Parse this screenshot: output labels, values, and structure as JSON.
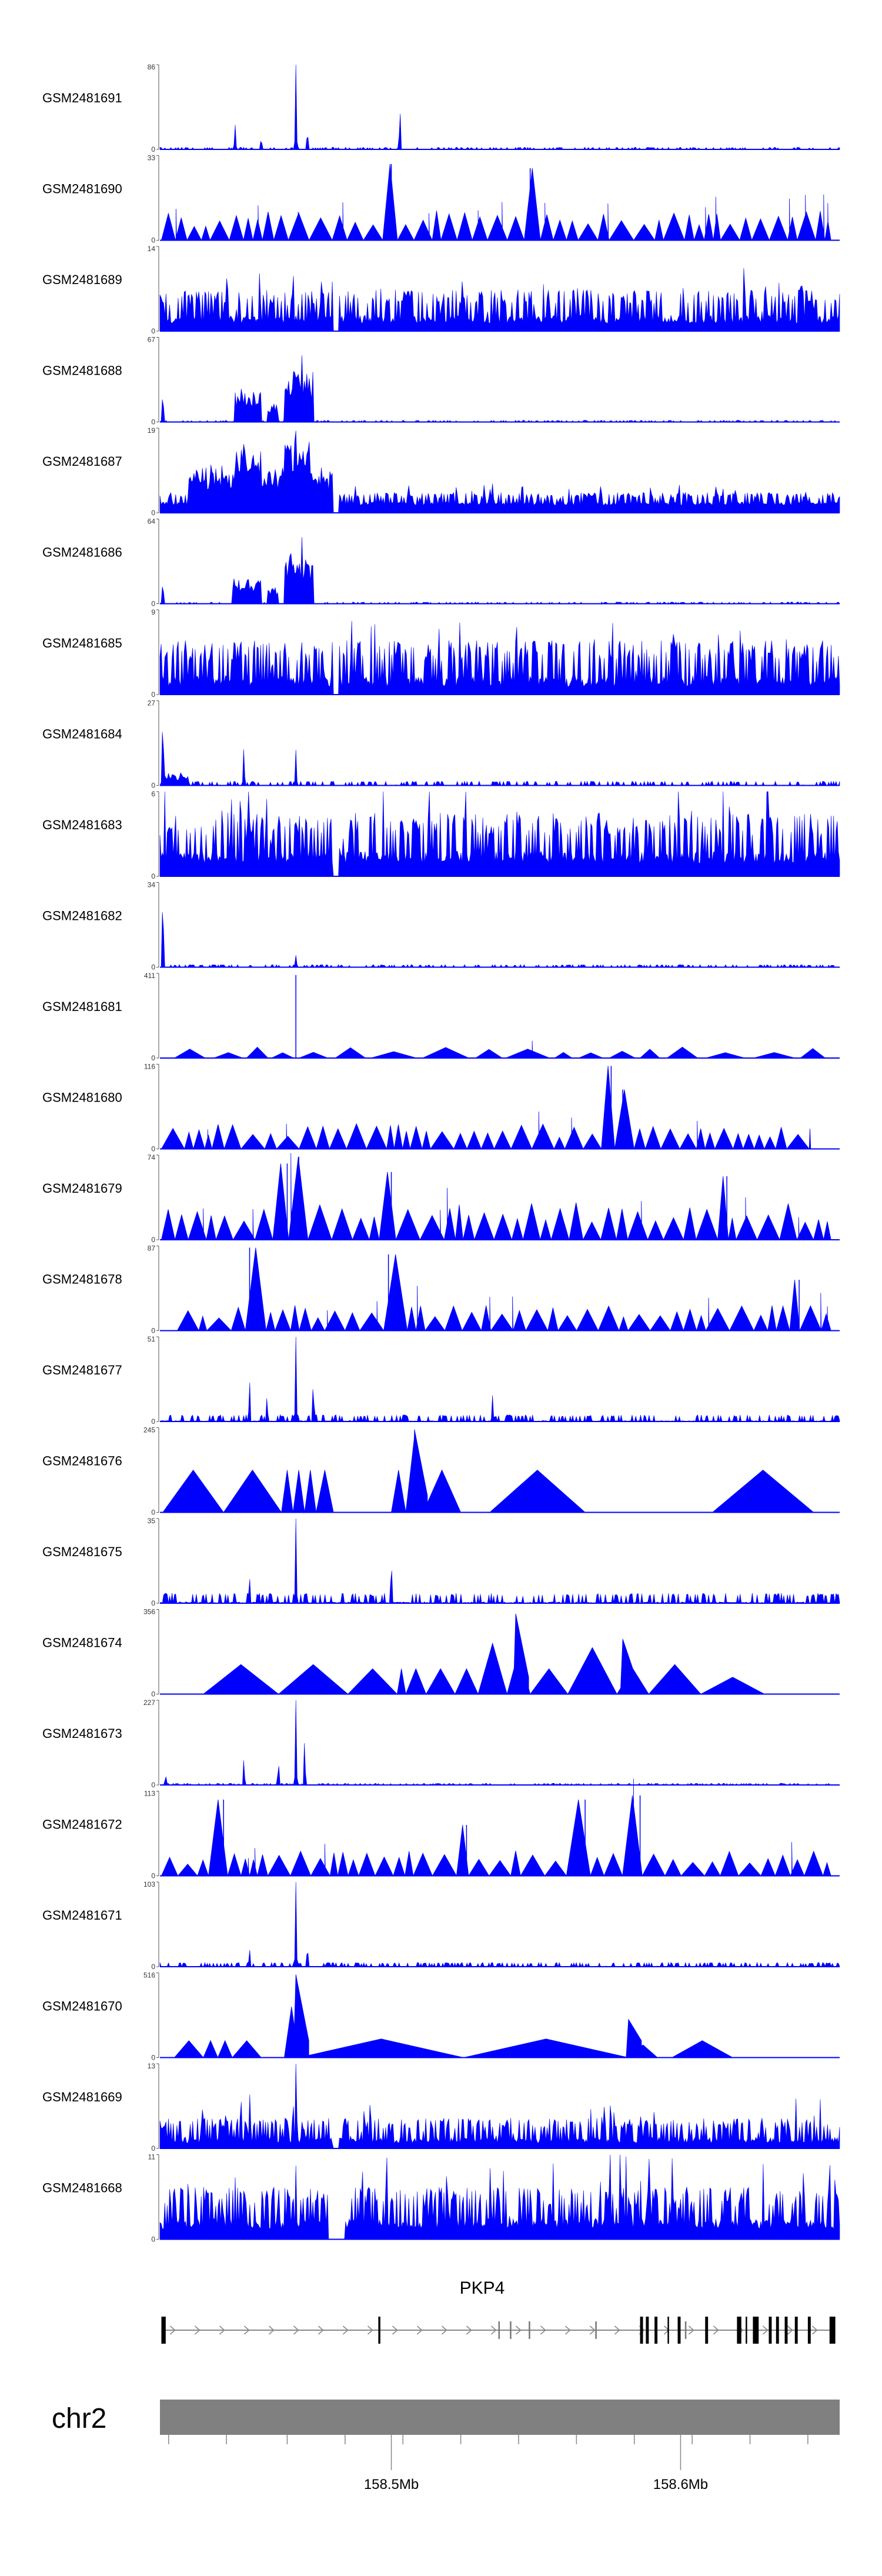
{
  "chart_data": {
    "type": "area",
    "x_unit": "Mb",
    "x_range": [
      158.42,
      158.655
    ],
    "series_color": "#0000ff",
    "tracks": [
      {
        "name": "GSM2481691",
        "ymax": "86",
        "ymin": "0",
        "ymax_value": 86,
        "style": "spiky",
        "baseline": 1,
        "noise": 0.025,
        "seed": 11,
        "peaks": [
          [
            158.446,
            0.28
          ],
          [
            158.455,
            0.12
          ],
          [
            158.467,
            1.0
          ],
          [
            158.471,
            0.22
          ],
          [
            158.503,
            0.5
          ]
        ],
        "bumps": []
      },
      {
        "name": "GSM2481690",
        "ymax": "33",
        "ymin": "0",
        "ymax_value": 33,
        "style": "triangles",
        "baseline": 0,
        "noise": 0.35,
        "seed": 12,
        "peaks": [
          [
            158.5,
            0.9
          ],
          [
            158.548,
            0.85
          ]
        ],
        "bumps": [],
        "gaps": [
          [
            158.488,
            158.491
          ]
        ]
      },
      {
        "name": "GSM2481689",
        "ymax": "14",
        "ymin": "0",
        "ymax_value": 14,
        "style": "dense",
        "baseline": 3,
        "noise": 0.4,
        "seed": 13,
        "peaks": [
          [
            158.466,
            0.98
          ],
          [
            158.458,
            0.55
          ]
        ],
        "bumps": [],
        "gaps": [
          [
            158.48,
            158.482
          ]
        ]
      },
      {
        "name": "GSM2481688",
        "ymax": "67",
        "ymin": "0",
        "ymax_value": 67,
        "style": "spiky",
        "baseline": 1,
        "noise": 0.02,
        "seed": 14,
        "peaks": [
          [
            158.421,
            0.38
          ],
          [
            158.448,
            0.5
          ],
          [
            158.469,
            0.98
          ]
        ],
        "bumps": [
          [
            158.446,
            158.455,
            0.38
          ],
          [
            158.457,
            158.461,
            0.22
          ],
          [
            158.463,
            158.473,
            0.6
          ]
        ]
      },
      {
        "name": "GSM2481687",
        "ymax": "19",
        "ymin": "0",
        "ymax_value": 19,
        "style": "dense",
        "baseline": 3,
        "noise": 0.15,
        "seed": 15,
        "peaks": [
          [
            158.467,
            0.95
          ],
          [
            158.449,
            0.8
          ],
          [
            158.46,
            0.7
          ]
        ],
        "bumps": [
          [
            158.43,
            158.48,
            0.35
          ],
          [
            158.446,
            158.455,
            0.3
          ],
          [
            158.463,
            158.472,
            0.35
          ]
        ],
        "gaps": [
          [
            158.48,
            158.482
          ]
        ]
      },
      {
        "name": "GSM2481686",
        "ymax": "64",
        "ymin": "0",
        "ymax_value": 64,
        "style": "spiky",
        "baseline": 1,
        "noise": 0.02,
        "seed": 16,
        "peaks": [
          [
            158.421,
            0.28
          ],
          [
            158.469,
            0.98
          ]
        ],
        "bumps": [
          [
            158.445,
            158.455,
            0.3
          ],
          [
            158.457,
            158.461,
            0.2
          ],
          [
            158.463,
            158.473,
            0.6
          ]
        ]
      },
      {
        "name": "GSM2481685",
        "ymax": "9",
        "ymin": "0",
        "ymax_value": 9,
        "style": "dense",
        "baseline": 3,
        "noise": 0.55,
        "seed": 17,
        "peaks": [
          [
            158.549,
            0.95
          ]
        ],
        "bumps": [],
        "gaps": [
          [
            158.48,
            158.482
          ]
        ]
      },
      {
        "name": "GSM2481684",
        "ymax": "27",
        "ymin": "0",
        "ymax_value": 27,
        "style": "spiky",
        "baseline": 1,
        "noise": 0.05,
        "seed": 18,
        "peaks": [
          [
            158.421,
            0.95
          ],
          [
            158.449,
            0.45
          ],
          [
            158.467,
            0.4
          ]
        ],
        "bumps": [
          [
            158.421,
            158.43,
            0.12
          ]
        ]
      },
      {
        "name": "GSM2481683",
        "ymax": "6",
        "ymin": "0",
        "ymax_value": 6,
        "style": "dense",
        "baseline": 5,
        "noise": 0.6,
        "seed": 19,
        "peaks": [],
        "bumps": [],
        "gaps": [
          [
            158.48,
            158.482
          ]
        ]
      },
      {
        "name": "GSM2481682",
        "ymax": "34",
        "ymin": "0",
        "ymax_value": 34,
        "style": "spiky",
        "baseline": 1,
        "noise": 0.03,
        "seed": 20,
        "peaks": [
          [
            158.421,
            0.98
          ],
          [
            158.467,
            0.12
          ]
        ],
        "bumps": []
      },
      {
        "name": "GSM2481681",
        "ymax": "411",
        "ymin": "0",
        "ymax_value": 411,
        "style": "triangles",
        "baseline": 0,
        "noise": 0.13,
        "seed": 21,
        "peaks": [
          [
            158.467,
            0.98
          ]
        ],
        "bumps": [],
        "tri_start": 158.425,
        "tri_end": 158.65,
        "sparse": 1
      },
      {
        "name": "GSM2481680",
        "ymax": "116",
        "ymin": "0",
        "ymax_value": 116,
        "style": "triangles",
        "baseline": 0,
        "noise": 0.3,
        "seed": 22,
        "peaks": [
          [
            158.576,
            0.98
          ],
          [
            158.58,
            0.7
          ]
        ],
        "bumps": [],
        "tri_end": 158.645
      },
      {
        "name": "GSM2481679",
        "ymax": "74",
        "ymin": "0",
        "ymax_value": 74,
        "style": "triangles",
        "baseline": 0,
        "noise": 0.45,
        "seed": 23,
        "peaks": [
          [
            158.464,
            0.9
          ],
          [
            158.468,
            0.98
          ],
          [
            158.5,
            0.8
          ],
          [
            158.616,
            0.75
          ]
        ],
        "bumps": []
      },
      {
        "name": "GSM2481678",
        "ymax": "87",
        "ymin": "0",
        "ymax_value": 87,
        "style": "triangles",
        "baseline": 0,
        "noise": 0.3,
        "seed": 24,
        "peaks": [
          [
            158.451,
            0.98
          ],
          [
            158.499,
            0.9
          ],
          [
            158.641,
            0.6
          ]
        ],
        "bumps": [],
        "tri_start": 158.426
      },
      {
        "name": "GSM2481677",
        "ymax": "51",
        "ymin": "0",
        "ymax_value": 51,
        "style": "spiky",
        "baseline": 2,
        "noise": 0.08,
        "seed": 25,
        "peaks": [
          [
            158.467,
            0.98
          ],
          [
            158.451,
            0.5
          ],
          [
            158.473,
            0.5
          ],
          [
            158.457,
            0.3
          ],
          [
            158.535,
            0.3
          ]
        ],
        "bumps": []
      },
      {
        "name": "GSM2481676",
        "ymax": "245",
        "ymin": "0",
        "ymax_value": 245,
        "style": "fixedtri",
        "baseline": 0,
        "seed": 26,
        "tris": [
          [
            158.421,
            158.442,
            0.5
          ],
          [
            158.442,
            158.462,
            0.5
          ],
          [
            158.462,
            158.466,
            0.5
          ],
          [
            158.466,
            158.47,
            0.5
          ],
          [
            158.47,
            158.474,
            0.5
          ],
          [
            158.474,
            158.48,
            0.5
          ],
          [
            158.5,
            158.505,
            0.5
          ],
          [
            158.505,
            158.511,
            0.9
          ],
          [
            158.511,
            158.524,
            0.5
          ],
          [
            158.534,
            158.567,
            0.5
          ],
          [
            158.567,
            158.611,
            0.0
          ],
          [
            158.611,
            158.646,
            0.5
          ]
        ],
        "spikes": [
          [
            158.508,
            0.98
          ]
        ]
      },
      {
        "name": "GSM2481675",
        "ymax": "35",
        "ymin": "0",
        "ymax_value": 35,
        "style": "spiky",
        "baseline": 2,
        "noise": 0.12,
        "seed": 27,
        "peaks": [
          [
            158.467,
            0.98
          ],
          [
            158.5,
            0.55
          ],
          [
            158.451,
            0.3
          ]
        ],
        "bumps": []
      },
      {
        "name": "GSM2481674",
        "ymax": "356",
        "ymin": "0",
        "ymax_value": 356,
        "style": "fixedtri",
        "baseline": 0,
        "seed": 28,
        "tris": [
          [
            158.435,
            158.461,
            0.35
          ],
          [
            158.461,
            158.485,
            0.35
          ],
          [
            158.485,
            158.502,
            0.3
          ],
          [
            158.502,
            158.505,
            0.3
          ],
          [
            158.505,
            158.512,
            0.3
          ],
          [
            158.512,
            158.522,
            0.3
          ],
          [
            158.522,
            158.53,
            0.3
          ],
          [
            158.53,
            158.54,
            0.6
          ],
          [
            158.54,
            158.548,
            0.5
          ],
          [
            158.548,
            158.561,
            0.3
          ],
          [
            158.561,
            158.578,
            0.55
          ],
          [
            158.578,
            158.589,
            0.3
          ],
          [
            158.589,
            158.607,
            0.35
          ],
          [
            158.607,
            158.629,
            0.2
          ]
        ],
        "spikes": [
          [
            158.543,
            0.95
          ],
          [
            158.58,
            0.65
          ]
        ]
      },
      {
        "name": "GSM2481673",
        "ymax": "227",
        "ymin": "0",
        "ymax_value": 227,
        "style": "spiky",
        "baseline": 1,
        "noise": 0.02,
        "seed": 29,
        "peaks": [
          [
            158.467,
            0.98
          ],
          [
            158.449,
            0.3
          ],
          [
            158.461,
            0.28
          ],
          [
            158.47,
            0.55
          ],
          [
            158.422,
            0.1
          ]
        ],
        "bumps": []
      },
      {
        "name": "GSM2481672",
        "ymax": "113",
        "ymin": "0",
        "ymax_value": 113,
        "style": "triangles",
        "baseline": 0,
        "noise": 0.3,
        "seed": 30,
        "peaks": [
          [
            158.442,
            0.9
          ],
          [
            158.526,
            0.6
          ],
          [
            158.567,
            0.9
          ],
          [
            158.586,
            0.95
          ]
        ],
        "bumps": []
      },
      {
        "name": "GSM2481671",
        "ymax": "103",
        "ymin": "0",
        "ymax_value": 103,
        "style": "spiky",
        "baseline": 1,
        "noise": 0.05,
        "seed": 31,
        "peaks": [
          [
            158.467,
            0.98
          ],
          [
            158.451,
            0.2
          ],
          [
            158.471,
            0.25
          ]
        ],
        "bumps": []
      },
      {
        "name": "GSM2481670",
        "ymax": "516",
        "ymin": "0",
        "ymax_value": 516,
        "style": "fixedtri",
        "baseline": 0,
        "seed": 32,
        "tris": [
          [
            158.425,
            158.435,
            0.2
          ],
          [
            158.435,
            158.44,
            0.2
          ],
          [
            158.44,
            158.445,
            0.2
          ],
          [
            158.445,
            158.455,
            0.2
          ],
          [
            158.463,
            158.468,
            0.6
          ],
          [
            158.468,
            158.525,
            0.22
          ],
          [
            158.525,
            158.582,
            0.22
          ],
          [
            158.582,
            158.592,
            0.15
          ],
          [
            158.597,
            158.618,
            0.2
          ]
        ],
        "spikes": [
          [
            158.467,
            0.98
          ],
          [
            158.582,
            0.45
          ]
        ]
      },
      {
        "name": "GSM2481669",
        "ymax": "13",
        "ymin": "0",
        "ymax_value": 13,
        "style": "dense",
        "baseline": 2,
        "noise": 0.3,
        "seed": 33,
        "peaks": [
          [
            158.467,
            0.98
          ],
          [
            158.451,
            0.7
          ],
          [
            158.5,
            0.4
          ]
        ],
        "bumps": [],
        "gaps": [
          [
            158.48,
            158.482
          ]
        ]
      },
      {
        "name": "GSM2481668",
        "ymax": "11",
        "ymin": "0",
        "ymax_value": 11,
        "style": "dense",
        "baseline": 4,
        "noise": 0.5,
        "seed": 34,
        "peaks": [
          [
            158.556,
            0.95
          ],
          [
            158.597,
            0.9
          ],
          [
            158.467,
            0.85
          ]
        ],
        "bumps": [],
        "gaps": [
          [
            158.478,
            158.484
          ]
        ]
      }
    ],
    "gene": {
      "name": "PKP4",
      "start": 158.4205,
      "end": 158.6535,
      "strand": "+",
      "exons": [
        [
          158.4205,
          158.422,
          1.0
        ],
        [
          158.4955,
          158.4962,
          1.0
        ],
        [
          158.537,
          158.5375,
          0.5
        ],
        [
          158.541,
          158.5414,
          0.5
        ],
        [
          158.5475,
          158.548,
          0.5
        ],
        [
          158.5705,
          158.571,
          0.5
        ],
        [
          158.586,
          158.587,
          1.0
        ],
        [
          158.588,
          158.589,
          1.0
        ],
        [
          158.591,
          158.592,
          1.0
        ],
        [
          158.5955,
          158.596,
          1.0
        ],
        [
          158.599,
          158.6,
          1.0
        ],
        [
          158.6015,
          158.602,
          0.5
        ],
        [
          158.6085,
          158.6095,
          1.0
        ],
        [
          158.6195,
          158.621,
          1.0
        ],
        [
          158.6225,
          158.623,
          1.0
        ],
        [
          158.625,
          158.627,
          1.0
        ],
        [
          158.6305,
          158.6315,
          1.0
        ],
        [
          158.633,
          158.634,
          1.0
        ],
        [
          158.636,
          158.637,
          1.0
        ],
        [
          158.6395,
          158.6405,
          1.0
        ],
        [
          158.644,
          158.645,
          1.0
        ],
        [
          158.6515,
          158.6535,
          1.0
        ]
      ]
    },
    "chromosome": {
      "name": "chr2",
      "ticks": [
        158.423,
        158.443,
        158.464,
        158.484,
        158.504,
        158.524,
        158.544,
        158.564,
        158.584,
        158.604,
        158.624,
        158.644
      ],
      "labeled_ticks": [
        {
          "value": 158.5,
          "label": "158.5Mb"
        },
        {
          "value": 158.6,
          "label": "158.6Mb"
        }
      ]
    }
  }
}
